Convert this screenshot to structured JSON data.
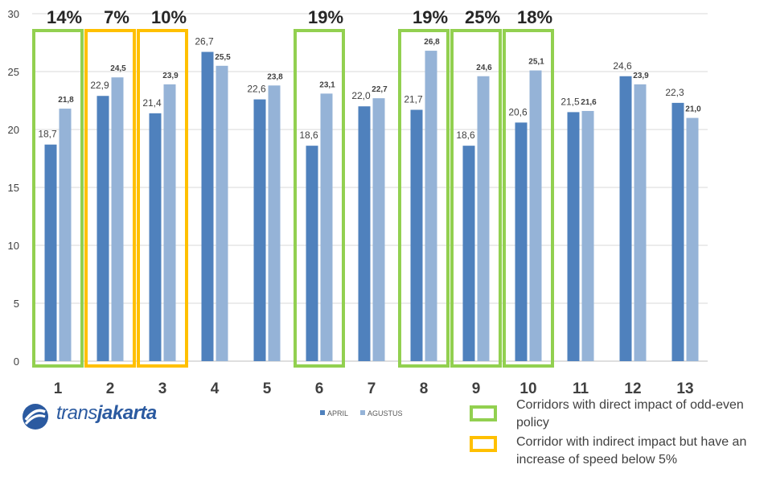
{
  "chart_data": {
    "type": "bar",
    "categories": [
      "1",
      "2",
      "3",
      "4",
      "5",
      "6",
      "7",
      "8",
      "9",
      "10",
      "11",
      "12",
      "13"
    ],
    "series": [
      {
        "name": "APRIL",
        "color": "#4f81bd",
        "values": [
          18.7,
          22.9,
          21.4,
          26.7,
          22.6,
          18.6,
          22.0,
          21.7,
          18.6,
          20.6,
          21.5,
          24.6,
          22.3
        ],
        "labels": [
          "18,7",
          "22,9",
          "21,4",
          "26,7",
          "22,6",
          "18,6",
          "22,0",
          "21,7",
          "18,6",
          "20,6",
          "21,5",
          "24,6",
          "22,3"
        ]
      },
      {
        "name": "AGUSTUS",
        "color": "#95b3d7",
        "values": [
          21.8,
          24.5,
          23.9,
          25.5,
          23.8,
          23.1,
          22.7,
          26.8,
          24.6,
          25.1,
          21.6,
          23.9,
          21.0
        ],
        "labels": [
          "21,8",
          "24,5",
          "23,9",
          "25,5",
          "23,8",
          "23,1",
          "22,7",
          "26,8",
          "24,6",
          "25,1",
          "21,6",
          "23,9",
          "21,0"
        ]
      }
    ],
    "ylim": [
      0,
      30
    ],
    "yticks": [
      "0",
      "5",
      "10",
      "15",
      "20",
      "25",
      "30"
    ],
    "grid": true,
    "legend_placement": "bottom",
    "highlights": [
      {
        "category_index": 0,
        "type": "direct",
        "label": "14%"
      },
      {
        "category_index": 1,
        "type": "indirect",
        "label": "7%"
      },
      {
        "category_index": 2,
        "type": "indirect",
        "label": "10%"
      },
      {
        "category_index": 5,
        "type": "direct",
        "label": "19%"
      },
      {
        "category_index": 7,
        "type": "direct",
        "label": "19%"
      },
      {
        "category_index": 8,
        "type": "direct",
        "label": "25%"
      },
      {
        "category_index": 9,
        "type": "direct",
        "label": "18%"
      }
    ]
  },
  "highlight_colors": {
    "direct": "#92d050",
    "indirect": "#ffc000"
  },
  "key": {
    "direct": "Corridors with direct impact of odd-even policy",
    "indirect": "Corridor with indirect impact but have an increase of speed below 5%"
  },
  "logo": {
    "part1": "trans",
    "part2": "jakarta",
    "icon": "transjakarta-logo-icon"
  }
}
